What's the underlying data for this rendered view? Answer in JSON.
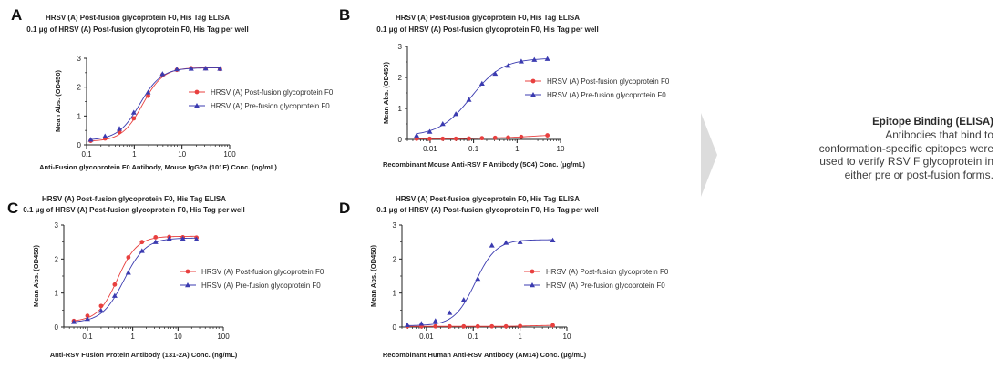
{
  "chart_data": [
    {
      "panel": "A",
      "type": "line",
      "title": "HRSV (A) Post-fusion glycoprotein F0, His Tag ELISA",
      "subtitle": "0.1 μg of HRSV (A) Post-fusion glycoprotein F0, His Tag per well",
      "xlabel": "Anti-Fusion glycoprotein F0 Antibody, Mouse IgG2a (101F) Conc. (ng/mL)",
      "ylabel": "Mean Abs. (OD450)",
      "xscale": "log",
      "xlim": [
        0.1,
        100
      ],
      "ylim": [
        0,
        3
      ],
      "xticks": [
        "0.1",
        "1",
        "10",
        "100"
      ],
      "yticks": [
        "0",
        "1",
        "2",
        "3"
      ],
      "legend": "right",
      "series": [
        {
          "name": "HRSV (A) Post-fusion glycoprotein F0",
          "color": "#e8403f",
          "marker": "circle",
          "x": [
            0.122,
            0.244,
            0.488,
            0.977,
            1.95,
            3.91,
            7.81,
            15.6,
            31.3,
            62.5
          ],
          "y": [
            0.14,
            0.22,
            0.45,
            0.92,
            1.7,
            2.42,
            2.6,
            2.66,
            2.65,
            2.63
          ]
        },
        {
          "name": "HRSV (A) Pre-fusion glycoprotein F0",
          "color": "#3b3bb0",
          "marker": "triangle",
          "x": [
            0.122,
            0.244,
            0.488,
            0.977,
            1.95,
            3.91,
            7.81,
            15.6,
            31.3,
            62.5
          ],
          "y": [
            0.18,
            0.3,
            0.56,
            1.12,
            1.82,
            2.46,
            2.62,
            2.64,
            2.65,
            2.64
          ]
        }
      ]
    },
    {
      "panel": "B",
      "type": "line",
      "title": "HRSV (A) Post-fusion glycoprotein F0, His Tag ELISA",
      "subtitle": "0.1 μg of HRSV (A) Post-fusion glycoprotein F0, His Tag per well",
      "xlabel": "Recombinant Mouse Anti-RSV F Antibody (5C4) Conc. (μg/mL)",
      "ylabel": "Mean Abs. (OD450)",
      "xscale": "log",
      "xlim": [
        0.003,
        10
      ],
      "ylim": [
        0,
        3
      ],
      "xticks": [
        "0.01",
        "0.1",
        "1",
        "10"
      ],
      "yticks": [
        "0",
        "1",
        "2",
        "3"
      ],
      "legend": "right",
      "series": [
        {
          "name": "HRSV (A) Post-fusion glycoprotein F0",
          "color": "#e8403f",
          "marker": "circle",
          "x": [
            0.00488,
            0.00977,
            0.0195,
            0.0391,
            0.0781,
            0.156,
            0.313,
            0.625,
            1.25,
            5
          ],
          "y": [
            0.02,
            0.02,
            0.02,
            0.02,
            0.03,
            0.04,
            0.05,
            0.06,
            0.08,
            0.13
          ]
        },
        {
          "name": "HRSV (A) Pre-fusion glycoprotein F0",
          "color": "#3b3bb0",
          "marker": "triangle",
          "x": [
            0.00488,
            0.00977,
            0.0195,
            0.0391,
            0.0781,
            0.156,
            0.313,
            0.625,
            1.25,
            2.5,
            5
          ],
          "y": [
            0.13,
            0.25,
            0.5,
            0.82,
            1.28,
            1.8,
            2.12,
            2.38,
            2.52,
            2.57,
            2.6
          ]
        }
      ]
    },
    {
      "panel": "C",
      "type": "line",
      "title": "HRSV (A) Post-fusion glycoprotein F0, His Tag ELISA",
      "subtitle": "0.1 μg of HRSV (A) Post-fusion glycoprotein F0, His Tag per well",
      "xlabel": "Anti-RSV Fusion Protein Antibody (131-2A) Conc. (ng/mL)",
      "ylabel": "Mean Abs. (OD450)",
      "xscale": "log",
      "xlim": [
        0.03,
        100
      ],
      "ylim": [
        0,
        3
      ],
      "xticks": [
        "0.1",
        "1",
        "10",
        "100"
      ],
      "yticks": [
        "0",
        "1",
        "2",
        "3"
      ],
      "legend": "right",
      "series": [
        {
          "name": "HRSV (A) Post-fusion glycoprotein F0",
          "color": "#e8403f",
          "marker": "circle",
          "x": [
            0.05,
            0.1,
            0.2,
            0.4,
            0.8,
            1.6,
            3.2,
            6.4,
            12.8,
            25.6
          ],
          "y": [
            0.18,
            0.33,
            0.62,
            1.25,
            2.05,
            2.5,
            2.64,
            2.65,
            2.64,
            2.63
          ]
        },
        {
          "name": "HRSV (A) Pre-fusion glycoprotein F0",
          "color": "#3b3bb0",
          "marker": "triangle",
          "x": [
            0.05,
            0.1,
            0.2,
            0.4,
            0.8,
            1.6,
            3.2,
            6.4,
            12.8,
            25.6
          ],
          "y": [
            0.15,
            0.24,
            0.48,
            0.92,
            1.6,
            2.24,
            2.5,
            2.6,
            2.6,
            2.58
          ]
        }
      ]
    },
    {
      "panel": "D",
      "type": "line",
      "title": "HRSV (A) Post-fusion glycoprotein F0, His Tag ELISA",
      "subtitle": "0.1 μg of HRSV (A) Post-fusion glycoprotein F0, His Tag per well",
      "xlabel": "Recombinant Human Anti-RSV Antibody (AM14) Conc. (μg/mL)",
      "ylabel": "Mean Abs. (OD450)",
      "xscale": "log",
      "xlim": [
        0.003,
        10
      ],
      "ylim": [
        0,
        3
      ],
      "xticks": [
        "0.01",
        "0.1",
        "1",
        "10"
      ],
      "yticks": [
        "0",
        "1",
        "2",
        "3"
      ],
      "legend": "right",
      "series": [
        {
          "name": "HRSV (A) Post-fusion glycoprotein F0",
          "color": "#e8403f",
          "marker": "circle",
          "x": [
            0.00391,
            0.00781,
            0.0156,
            0.0313,
            0.0625,
            0.125,
            0.25,
            0.5,
            1,
            5
          ],
          "y": [
            0.02,
            0.02,
            0.02,
            0.02,
            0.02,
            0.02,
            0.02,
            0.02,
            0.03,
            0.05
          ]
        },
        {
          "name": "HRSV (A) Pre-fusion glycoprotein F0",
          "color": "#3b3bb0",
          "marker": "triangle",
          "x": [
            0.00391,
            0.00781,
            0.0156,
            0.0313,
            0.0625,
            0.125,
            0.25,
            0.5,
            1,
            5
          ],
          "y": [
            0.06,
            0.1,
            0.18,
            0.42,
            0.8,
            1.42,
            2.4,
            2.48,
            2.5,
            2.55
          ]
        }
      ]
    }
  ],
  "panels": [
    {
      "letter": "A"
    },
    {
      "letter": "B"
    },
    {
      "letter": "C"
    },
    {
      "letter": "D"
    }
  ],
  "side_note": {
    "title": "Epitope Binding (ELISA)",
    "lines": [
      "Antibodies that bind to",
      "conformation-specific epitopes were",
      "used to verify RSV F glycoprotein in",
      "either pre or post-fusion forms."
    ],
    "arrow_color": "#dcdcdc"
  }
}
